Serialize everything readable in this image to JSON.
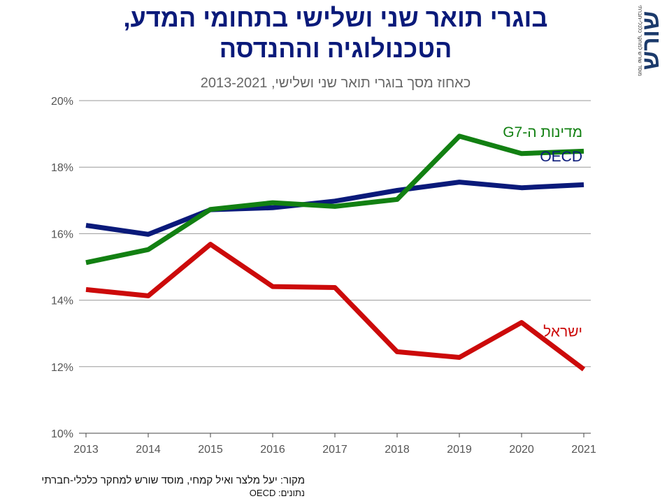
{
  "logo_text": "שורש",
  "logo_tagline": "מוסד שורש למחקר כלכלי-חברתי",
  "source": "מקור: יעל מלצר ואיל קמחי, מוסד שורש למחקר כלכלי-חברתי",
  "data_note": "נתונים: OECD",
  "chart_data": {
    "type": "line",
    "title": "בוגרי תואר שני ושלישי בתחומי המדע, הטכנולוגיה וההנדסה",
    "subtitle": "כאחוז מסך בוגרי תואר שני ושלישי, 2013-2021",
    "xlabel": "",
    "ylabel": "",
    "x": [
      2013,
      2014,
      2015,
      2016,
      2017,
      2018,
      2019,
      2020,
      2021
    ],
    "ylim": [
      10,
      20
    ],
    "yticks": [
      10,
      12,
      14,
      16,
      18,
      20
    ],
    "ytick_labels": [
      "10%",
      "12%",
      "14%",
      "16%",
      "18%",
      "20%"
    ],
    "grid": true,
    "series": [
      {
        "name": "OECD",
        "color": "#0a1a7a",
        "values": [
          16.25,
          15.98,
          16.72,
          16.78,
          16.98,
          17.3,
          17.55,
          17.38,
          17.47
        ]
      },
      {
        "name": "מדינות ה-G7",
        "color": "#128012",
        "values": [
          15.13,
          15.52,
          16.73,
          16.93,
          16.82,
          17.03,
          18.93,
          18.41,
          18.48
        ]
      },
      {
        "name": "ישראל",
        "color": "#cc0a0a",
        "values": [
          14.32,
          14.13,
          15.68,
          14.41,
          14.38,
          12.45,
          12.28,
          13.33,
          11.92
        ]
      }
    ]
  }
}
